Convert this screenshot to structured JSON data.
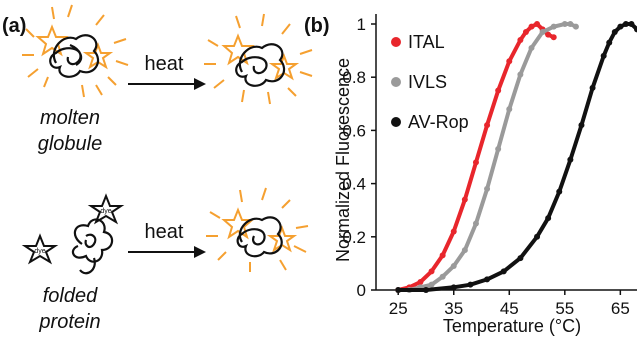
{
  "panel_a": {
    "label": "(a)",
    "top_row": {
      "arrow_label": "heat",
      "caption_line1": "molten",
      "caption_line2": "globule"
    },
    "bottom_row": {
      "arrow_label": "heat",
      "caption_line1": "folded",
      "caption_line2": "protein"
    },
    "dye_text": "dye",
    "colors": {
      "glow": "#f5a030",
      "line": "#111111"
    }
  },
  "chart_data": {
    "panel_label": "(b)",
    "type": "scatter",
    "xlabel": "Temperature (°C)",
    "ylabel": "Normalized Fluorescence",
    "xlim": [
      21,
      68
    ],
    "ylim": [
      0,
      1
    ],
    "xticks": [
      25,
      35,
      45,
      55,
      65
    ],
    "yticks": [
      0,
      0.2,
      0.4,
      0.6,
      0.8,
      1
    ],
    "ytick_labels": [
      "0",
      "0.2",
      "0.4",
      "0.6",
      "0.8",
      "1"
    ],
    "legend_position": "top-left",
    "grid": false,
    "series": [
      {
        "name": "ITAL",
        "color": "#e8262c",
        "x": [
          25,
          27,
          29,
          31,
          33,
          35,
          37,
          39,
          41,
          43,
          45,
          47,
          48,
          49,
          50,
          51,
          52,
          53
        ],
        "y": [
          0.0,
          0.01,
          0.03,
          0.07,
          0.13,
          0.22,
          0.34,
          0.48,
          0.62,
          0.75,
          0.86,
          0.94,
          0.97,
          0.99,
          1.0,
          0.98,
          0.96,
          0.95
        ]
      },
      {
        "name": "IVLS",
        "color": "#9a9a9a",
        "x": [
          25,
          27,
          29,
          31,
          33,
          35,
          37,
          39,
          41,
          43,
          45,
          47,
          49,
          51,
          53,
          55,
          56,
          57
        ],
        "y": [
          0.0,
          0.0,
          0.01,
          0.02,
          0.05,
          0.09,
          0.15,
          0.25,
          0.38,
          0.53,
          0.68,
          0.81,
          0.91,
          0.97,
          0.99,
          1.0,
          1.0,
          0.99
        ]
      },
      {
        "name": "AV-Rop",
        "color": "#111111",
        "x": [
          25,
          30,
          35,
          38,
          41,
          44,
          47,
          50,
          52,
          54,
          56,
          58,
          60,
          62,
          63,
          64,
          65,
          66,
          67,
          68
        ],
        "y": [
          0.0,
          0.0,
          0.01,
          0.02,
          0.04,
          0.07,
          0.12,
          0.2,
          0.27,
          0.37,
          0.49,
          0.62,
          0.76,
          0.88,
          0.93,
          0.97,
          0.99,
          1.0,
          1.0,
          0.98
        ]
      }
    ]
  }
}
